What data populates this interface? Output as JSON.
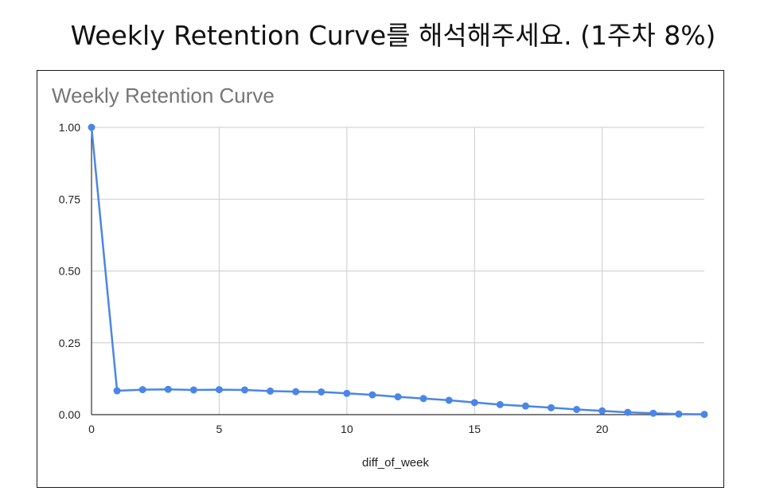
{
  "heading": "Weekly Retention Curve를 해석해주세요. (1주차 8%)",
  "chart_data": {
    "type": "line",
    "title": "Weekly Retention Curve",
    "xlabel": "diff_of_week",
    "ylabel": "",
    "xlim": [
      0,
      24
    ],
    "ylim": [
      0,
      1
    ],
    "x_ticks": [
      "0",
      "5",
      "10",
      "15",
      "20"
    ],
    "x_tick_values": [
      0,
      5,
      10,
      15,
      20
    ],
    "y_ticks": [
      "0.00",
      "0.25",
      "0.50",
      "0.75",
      "1.00"
    ],
    "y_tick_values": [
      0,
      0.25,
      0.5,
      0.75,
      1
    ],
    "grid": true,
    "legend": "none",
    "series": [
      {
        "color": "#4a86e8",
        "x": [
          0,
          1,
          2,
          3,
          4,
          5,
          6,
          7,
          8,
          9,
          10,
          11,
          12,
          13,
          14,
          15,
          16,
          17,
          18,
          19,
          20,
          21,
          22,
          23,
          24
        ],
        "y": [
          1.0,
          0.083,
          0.087,
          0.088,
          0.086,
          0.087,
          0.086,
          0.082,
          0.08,
          0.079,
          0.074,
          0.069,
          0.062,
          0.056,
          0.05,
          0.042,
          0.035,
          0.03,
          0.024,
          0.018,
          0.013,
          0.008,
          0.005,
          0.002,
          0.001
        ]
      }
    ]
  }
}
